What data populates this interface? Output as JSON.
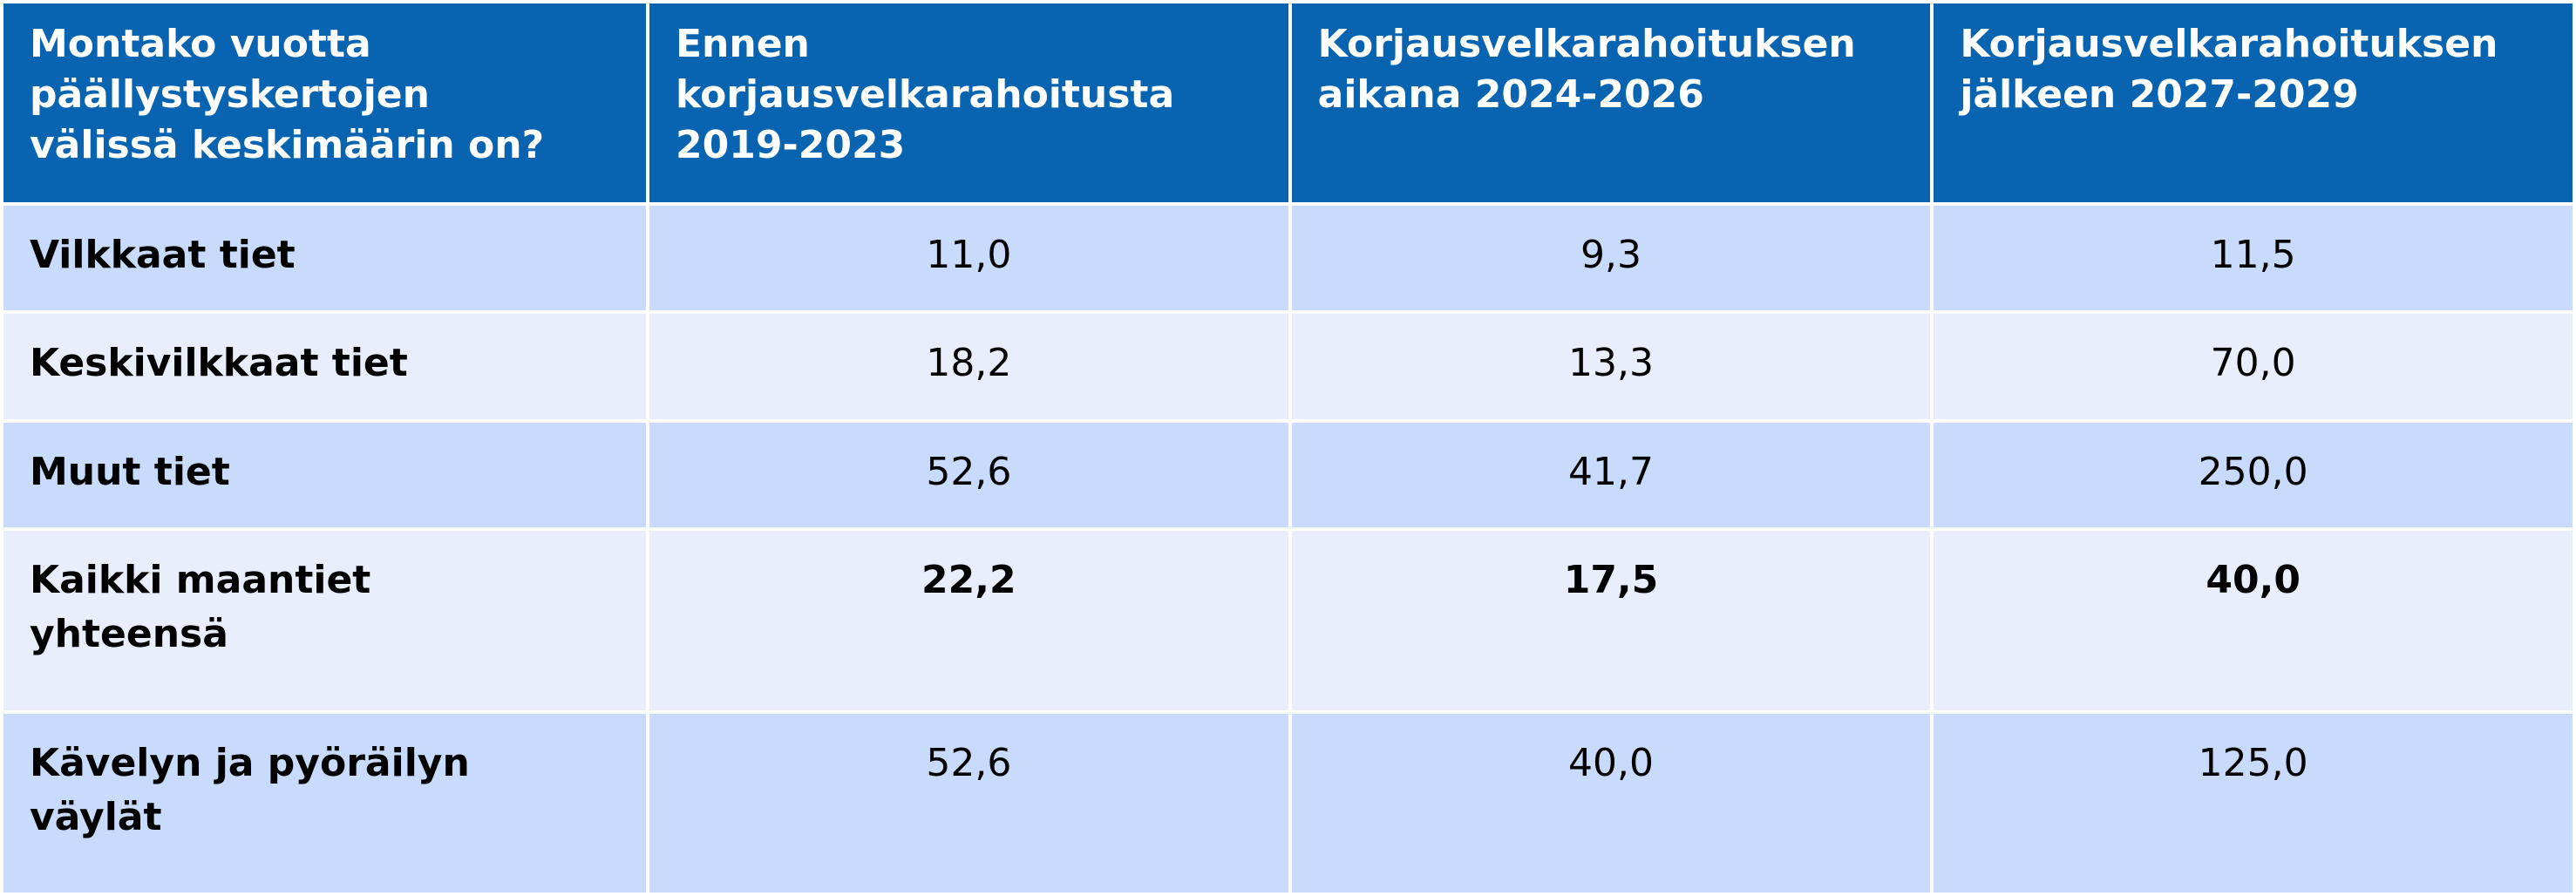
{
  "table": {
    "header": [
      "Montako vuotta\npäällystyskertojen\nvälissä keskimäärin on?",
      "Ennen\nkorjausvelkarahoitusta\n2019-2023",
      "Korjausvelkarahoituksen\naikana 2024-2026",
      "Korjausvelkarahoituksen\njälkeen 2027-2029"
    ],
    "rows": [
      [
        "Vilkkaat tiet",
        "11,0",
        "9,3",
        "11,5"
      ],
      [
        "Keskivilkkaat tiet",
        "18,2",
        "13,3",
        "70,0"
      ],
      [
        "Muut tiet",
        "52,6",
        "41,7",
        "250,0"
      ],
      [
        "Kaikki maantiet\nyhteensä",
        "22,2",
        "17,5",
        "40,0"
      ],
      [
        "Kävelyn ja pyöräilyn\nväylät",
        "52,6",
        "40,0",
        "125,0"
      ]
    ],
    "bold_rows": [
      3
    ]
  }
}
